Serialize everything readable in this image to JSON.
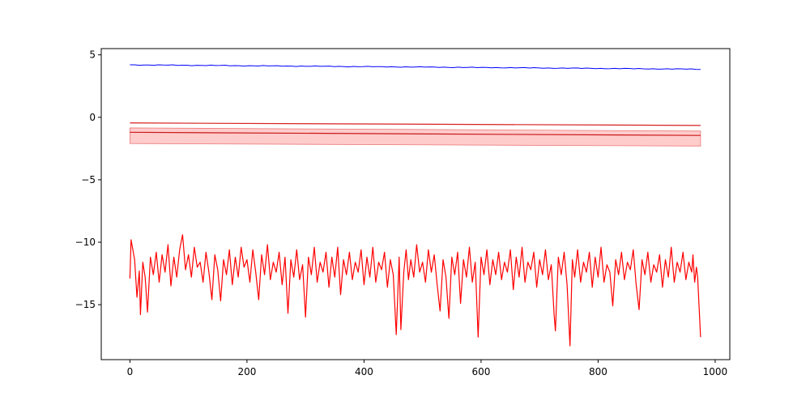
{
  "chart_data": {
    "type": "line",
    "title": "",
    "xlabel": "",
    "ylabel": "",
    "xlim": [
      -49,
      1025
    ],
    "ylim": [
      -19.4,
      5.5
    ],
    "grid": false,
    "legend": null,
    "x_ticks": [
      0,
      200,
      400,
      600,
      800,
      1000
    ],
    "x_tick_labels": [
      "0",
      "200",
      "400",
      "600",
      "800",
      "1000"
    ],
    "y_ticks": [
      5,
      0,
      -5,
      -10,
      -15
    ],
    "y_tick_labels": [
      "5",
      "0",
      "−5",
      "−10",
      "−15"
    ],
    "colors": {
      "blue_series": "#0000ff",
      "red_series": "#ff0000",
      "trend_line": "#d62020",
      "mean_line": "#c81818",
      "band_fill": "#ff9a9a",
      "band_edge": "#e03030"
    },
    "series": [
      {
        "style": "slowly decreasing blue line",
        "x_range": [
          0,
          975
        ],
        "start": 4.2,
        "end": 3.85
      },
      {
        "style": "red straight line",
        "x_range": [
          0,
          975
        ],
        "start": -0.45,
        "end": -0.65
      },
      {
        "style": "red mean line with shaded band",
        "x_range": [
          0,
          975
        ],
        "mean_start": -1.2,
        "mean_end": -1.45,
        "band_upper_start": -0.85,
        "band_upper_end": -1.1,
        "band_lower_start": -2.1,
        "band_lower_end": -2.3
      },
      {
        "style": "noisy red line",
        "x_range": [
          0,
          975
        ],
        "points": [
          [
            0,
            -12.9
          ],
          [
            2,
            -9.8
          ],
          [
            5,
            -10.6
          ],
          [
            8,
            -11.4
          ],
          [
            12,
            -14.4
          ],
          [
            16,
            -12.3
          ],
          [
            18,
            -15.8
          ],
          [
            22,
            -11.6
          ],
          [
            26,
            -12.8
          ],
          [
            30,
            -15.6
          ],
          [
            35,
            -11.2
          ],
          [
            40,
            -12.6
          ],
          [
            45,
            -10.8
          ],
          [
            50,
            -13.2
          ],
          [
            55,
            -11.0
          ],
          [
            60,
            -12.4
          ],
          [
            65,
            -10.2
          ],
          [
            70,
            -13.5
          ],
          [
            75,
            -11.2
          ],
          [
            80,
            -12.8
          ],
          [
            85,
            -10.6
          ],
          [
            90,
            -9.4
          ],
          [
            95,
            -12.2
          ],
          [
            100,
            -11.0
          ],
          [
            105,
            -12.8
          ],
          [
            110,
            -10.4
          ],
          [
            115,
            -12.0
          ],
          [
            120,
            -11.6
          ],
          [
            125,
            -13.2
          ],
          [
            130,
            -10.8
          ],
          [
            135,
            -12.4
          ],
          [
            140,
            -14.6
          ],
          [
            145,
            -11.0
          ],
          [
            150,
            -12.2
          ],
          [
            155,
            -14.7
          ],
          [
            160,
            -11.4
          ],
          [
            165,
            -12.6
          ],
          [
            170,
            -10.6
          ],
          [
            175,
            -13.4
          ],
          [
            180,
            -11.2
          ],
          [
            185,
            -12.8
          ],
          [
            190,
            -10.4
          ],
          [
            195,
            -12.0
          ],
          [
            200,
            -11.4
          ],
          [
            205,
            -13.2
          ],
          [
            210,
            -10.6
          ],
          [
            215,
            -12.4
          ],
          [
            220,
            -14.6
          ],
          [
            225,
            -11.0
          ],
          [
            230,
            -12.6
          ],
          [
            235,
            -10.2
          ],
          [
            240,
            -13.0
          ],
          [
            245,
            -11.6
          ],
          [
            250,
            -12.4
          ],
          [
            255,
            -10.8
          ],
          [
            260,
            -13.4
          ],
          [
            265,
            -11.2
          ],
          [
            270,
            -15.7
          ],
          [
            275,
            -11.4
          ],
          [
            280,
            -12.8
          ],
          [
            285,
            -10.6
          ],
          [
            290,
            -13.0
          ],
          [
            295,
            -11.8
          ],
          [
            300,
            -16.0
          ],
          [
            305,
            -11.2
          ],
          [
            310,
            -12.6
          ],
          [
            315,
            -10.4
          ],
          [
            320,
            -13.2
          ],
          [
            325,
            -11.6
          ],
          [
            330,
            -12.4
          ],
          [
            335,
            -10.8
          ],
          [
            340,
            -13.6
          ],
          [
            345,
            -11.2
          ],
          [
            350,
            -12.8
          ],
          [
            355,
            -10.4
          ],
          [
            360,
            -14.2
          ],
          [
            365,
            -11.4
          ],
          [
            370,
            -12.6
          ],
          [
            375,
            -10.8
          ],
          [
            380,
            -13.0
          ],
          [
            385,
            -11.6
          ],
          [
            390,
            -12.4
          ],
          [
            395,
            -10.6
          ],
          [
            400,
            -13.4
          ],
          [
            405,
            -11.2
          ],
          [
            410,
            -12.8
          ],
          [
            415,
            -10.4
          ],
          [
            420,
            -13.2
          ],
          [
            425,
            -11.6
          ],
          [
            430,
            -12.2
          ],
          [
            435,
            -10.8
          ],
          [
            440,
            -13.6
          ],
          [
            445,
            -11.4
          ],
          [
            450,
            -12.6
          ],
          [
            455,
            -17.4
          ],
          [
            460,
            -11.2
          ],
          [
            463,
            -17.0
          ],
          [
            468,
            -12.4
          ],
          [
            472,
            -10.6
          ],
          [
            476,
            -13.0
          ],
          [
            480,
            -11.4
          ],
          [
            485,
            -12.8
          ],
          [
            490,
            -10.2
          ],
          [
            495,
            -12.4
          ],
          [
            500,
            -11.6
          ],
          [
            505,
            -13.2
          ],
          [
            510,
            -10.6
          ],
          [
            515,
            -12.4
          ],
          [
            520,
            -11.0
          ],
          [
            525,
            -13.4
          ],
          [
            530,
            -15.5
          ],
          [
            535,
            -11.4
          ],
          [
            540,
            -12.8
          ],
          [
            545,
            -16.1
          ],
          [
            550,
            -11.2
          ],
          [
            555,
            -12.6
          ],
          [
            560,
            -10.8
          ],
          [
            565,
            -14.9
          ],
          [
            570,
            -11.4
          ],
          [
            575,
            -12.8
          ],
          [
            580,
            -10.4
          ],
          [
            585,
            -13.2
          ],
          [
            590,
            -11.6
          ],
          [
            595,
            -17.6
          ],
          [
            600,
            -11.2
          ],
          [
            605,
            -12.6
          ],
          [
            610,
            -10.6
          ],
          [
            615,
            -13.4
          ],
          [
            620,
            -11.4
          ],
          [
            625,
            -12.6
          ],
          [
            630,
            -10.8
          ],
          [
            635,
            -13.0
          ],
          [
            640,
            -11.6
          ],
          [
            645,
            -12.4
          ],
          [
            650,
            -10.6
          ],
          [
            655,
            -13.8
          ],
          [
            660,
            -11.2
          ],
          [
            665,
            -12.8
          ],
          [
            670,
            -10.4
          ],
          [
            675,
            -13.2
          ],
          [
            680,
            -11.6
          ],
          [
            685,
            -12.2
          ],
          [
            690,
            -10.8
          ],
          [
            695,
            -13.6
          ],
          [
            700,
            -11.4
          ],
          [
            705,
            -12.6
          ],
          [
            710,
            -10.6
          ],
          [
            715,
            -13.0
          ],
          [
            720,
            -11.8
          ],
          [
            725,
            -15.9
          ],
          [
            727,
            -17.1
          ],
          [
            732,
            -11.2
          ],
          [
            737,
            -12.6
          ],
          [
            742,
            -10.8
          ],
          [
            747,
            -13.4
          ],
          [
            752,
            -18.3
          ],
          [
            756,
            -11.4
          ],
          [
            760,
            -12.8
          ],
          [
            765,
            -10.6
          ],
          [
            770,
            -13.2
          ],
          [
            775,
            -11.6
          ],
          [
            780,
            -12.4
          ],
          [
            785,
            -10.8
          ],
          [
            790,
            -13.6
          ],
          [
            795,
            -11.2
          ],
          [
            800,
            -12.8
          ],
          [
            805,
            -10.4
          ],
          [
            810,
            -13.2
          ],
          [
            815,
            -11.8
          ],
          [
            820,
            -12.4
          ],
          [
            825,
            -15.1
          ],
          [
            830,
            -11.4
          ],
          [
            835,
            -12.6
          ],
          [
            840,
            -10.8
          ],
          [
            845,
            -13.0
          ],
          [
            850,
            -11.6
          ],
          [
            855,
            -12.2
          ],
          [
            860,
            -10.6
          ],
          [
            865,
            -13.4
          ],
          [
            870,
            -15.4
          ],
          [
            875,
            -11.4
          ],
          [
            880,
            -12.6
          ],
          [
            885,
            -10.8
          ],
          [
            890,
            -13.2
          ],
          [
            895,
            -11.8
          ],
          [
            900,
            -12.4
          ],
          [
            905,
            -11.0
          ],
          [
            910,
            -13.6
          ],
          [
            915,
            -11.4
          ],
          [
            920,
            -12.8
          ],
          [
            925,
            -10.4
          ],
          [
            930,
            -13.2
          ],
          [
            935,
            -11.6
          ],
          [
            940,
            -12.4
          ],
          [
            945,
            -10.8
          ],
          [
            950,
            -13.0
          ],
          [
            955,
            -11.6
          ],
          [
            960,
            -12.4
          ],
          [
            962,
            -11.0
          ],
          [
            965,
            -13.2
          ],
          [
            968,
            -12.0
          ],
          [
            970,
            -12.8
          ],
          [
            975,
            -17.6
          ]
        ]
      }
    ]
  }
}
